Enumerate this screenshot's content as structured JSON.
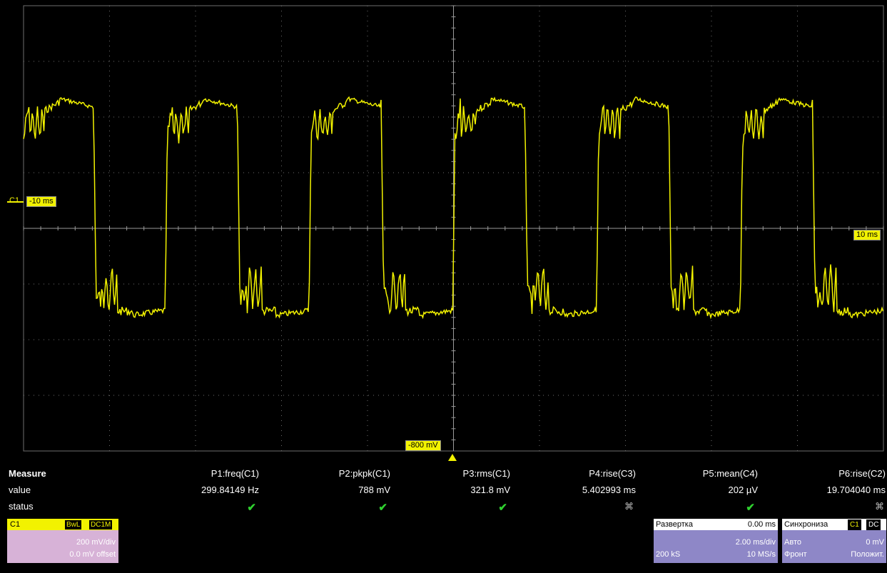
{
  "scope": {
    "channel_label": "C1",
    "left_offset": "-10 ms",
    "right_offset": "10 ms",
    "trigger_level": "-800 mV",
    "trace_color": "#f2f200",
    "grid_color": "#6e6e6e"
  },
  "measure": {
    "title": "Measure",
    "value_label": "value",
    "status_label": "status",
    "params": [
      {
        "name": "P1:freq(C1)",
        "value": "299.84149 Hz",
        "status": "ok"
      },
      {
        "name": "P2:pkpk(C1)",
        "value": "788 mV",
        "status": "ok"
      },
      {
        "name": "P3:rms(C1)",
        "value": "321.8 mV",
        "status": "ok"
      },
      {
        "name": "P4:rise(C3)",
        "value": "5.402993 ms",
        "status": "invalid"
      },
      {
        "name": "P5:mean(C4)",
        "value": "202 µV",
        "status": "ok"
      },
      {
        "name": "P6:rise(C2)",
        "value": "19.704040 ms",
        "status": "invalid"
      }
    ]
  },
  "channel_panel": {
    "name": "C1",
    "chip1": "BwL",
    "chip2": "DC1M",
    "scale": "200 mV/div",
    "offset": "0.0 mV offset"
  },
  "timebase_panel": {
    "title": "Развертка",
    "delay": "0.00 ms",
    "scale": "2.00 ms/div",
    "samples": "200 kS",
    "rate": "10 MS/s"
  },
  "trigger_panel": {
    "title": "Синхрониза",
    "chip_source": "C1",
    "chip_coupling": "DC",
    "mode": "Авто",
    "level": "0 mV",
    "type": "Фронт",
    "slope": "Положит."
  }
}
